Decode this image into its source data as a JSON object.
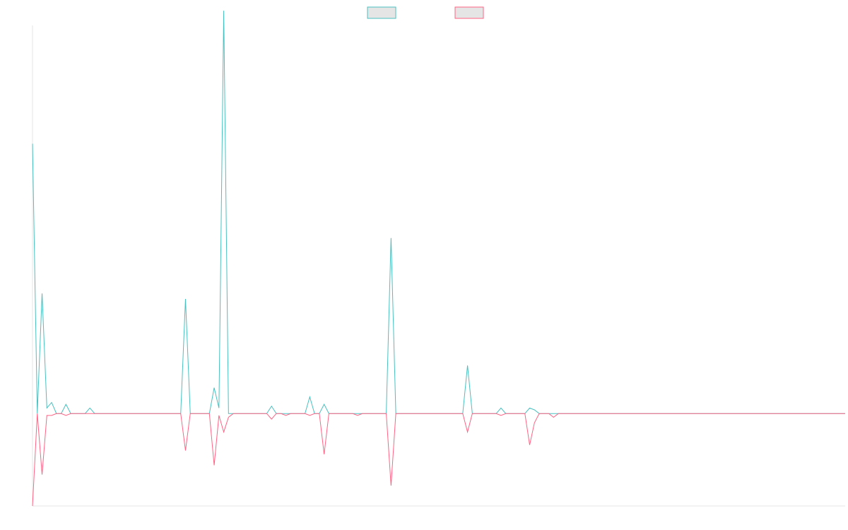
{
  "chart_data": {
    "type": "line",
    "title": "",
    "xlabel": "",
    "ylabel": "",
    "grid": false,
    "legend_placement": "top-center",
    "x_count": 171,
    "ylim": [
      -50,
      210
    ],
    "colors": {
      "series_a": "#4bc0c0",
      "series_b": "#ff6384",
      "legend_fill": "#e5e5e5",
      "axis": "#e5e5e5"
    },
    "series": [
      {
        "key": "series_a",
        "name": "",
        "points": [
          [
            0,
            146
          ],
          [
            1,
            0
          ],
          [
            2,
            65
          ],
          [
            3,
            3
          ],
          [
            4,
            6
          ],
          [
            5,
            0
          ],
          [
            6,
            0
          ],
          [
            7,
            5
          ],
          [
            8,
            0
          ],
          [
            12,
            3
          ],
          [
            13,
            0
          ],
          [
            14,
            0
          ],
          [
            15,
            0
          ],
          [
            31,
            0
          ],
          [
            32,
            62
          ],
          [
            33,
            0
          ],
          [
            37,
            0
          ],
          [
            38,
            14
          ],
          [
            39,
            3
          ],
          [
            40,
            218
          ],
          [
            41,
            0
          ],
          [
            42,
            0
          ],
          [
            50,
            4
          ],
          [
            51,
            0
          ],
          [
            53,
            0
          ],
          [
            54,
            0
          ],
          [
            57,
            0
          ],
          [
            58,
            9
          ],
          [
            59,
            0
          ],
          [
            60,
            0
          ],
          [
            61,
            5
          ],
          [
            62,
            0
          ],
          [
            67,
            0
          ],
          [
            68,
            0
          ],
          [
            74,
            0
          ],
          [
            75,
            95
          ],
          [
            76,
            0
          ],
          [
            90,
            0
          ],
          [
            91,
            26
          ],
          [
            92,
            0
          ],
          [
            97,
            0
          ],
          [
            98,
            3
          ],
          [
            99,
            0
          ],
          [
            103,
            0
          ],
          [
            104,
            3
          ],
          [
            105,
            2
          ],
          [
            106,
            0
          ],
          [
            107,
            0
          ],
          [
            108,
            0
          ],
          [
            109,
            0
          ],
          [
            170,
            0
          ]
        ]
      },
      {
        "key": "series_b",
        "name": "",
        "points": [
          [
            0,
            -50
          ],
          [
            1,
            0
          ],
          [
            2,
            -33
          ],
          [
            3,
            -1
          ],
          [
            4,
            -1
          ],
          [
            5,
            0
          ],
          [
            6,
            0
          ],
          [
            7,
            -1
          ],
          [
            8,
            0
          ],
          [
            12,
            0
          ],
          [
            13,
            0
          ],
          [
            14,
            0
          ],
          [
            15,
            0
          ],
          [
            31,
            0
          ],
          [
            32,
            -20
          ],
          [
            33,
            0
          ],
          [
            37,
            0
          ],
          [
            38,
            -28
          ],
          [
            39,
            -1
          ],
          [
            40,
            -10
          ],
          [
            41,
            -2
          ],
          [
            42,
            0
          ],
          [
            50,
            -3
          ],
          [
            51,
            0
          ],
          [
            53,
            -1
          ],
          [
            54,
            0
          ],
          [
            57,
            0
          ],
          [
            58,
            -1
          ],
          [
            59,
            0
          ],
          [
            60,
            0
          ],
          [
            61,
            -22
          ],
          [
            62,
            0
          ],
          [
            67,
            0
          ],
          [
            68,
            -1
          ],
          [
            74,
            0
          ],
          [
            75,
            -39
          ],
          [
            76,
            0
          ],
          [
            90,
            0
          ],
          [
            91,
            -10
          ],
          [
            92,
            0
          ],
          [
            97,
            0
          ],
          [
            98,
            -1
          ],
          [
            99,
            0
          ],
          [
            103,
            0
          ],
          [
            104,
            -17
          ],
          [
            105,
            -5
          ],
          [
            106,
            0
          ],
          [
            107,
            0
          ],
          [
            108,
            0
          ],
          [
            109,
            -2
          ],
          [
            170,
            0
          ]
        ]
      }
    ]
  }
}
